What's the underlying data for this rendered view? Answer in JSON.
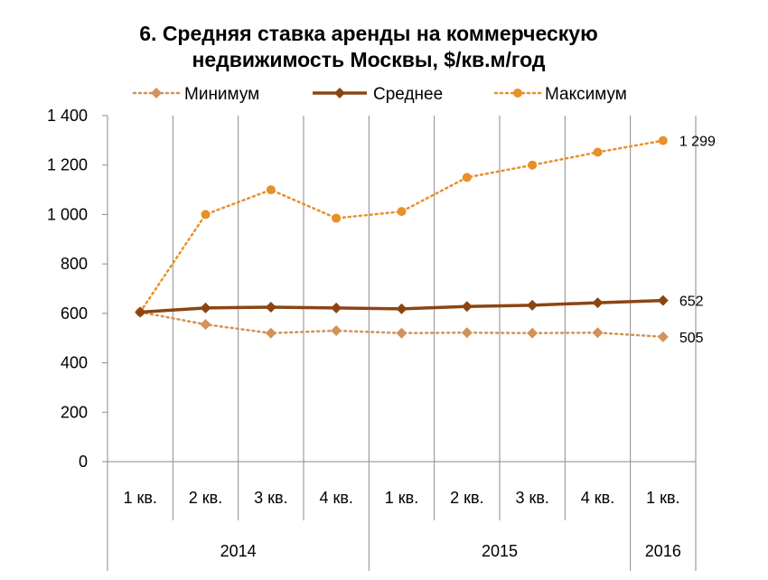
{
  "chart_data": {
    "type": "line",
    "title_line1": "6. Средняя ставка аренды на коммерческую",
    "title_line2": "недвижимость Москвы, $/кв.м/год",
    "categories": [
      "1 кв.",
      "2 кв.",
      "3 кв.",
      "4 кв.",
      "1 кв.",
      "2 кв.",
      "3 кв.",
      "4 кв.",
      "1 кв."
    ],
    "year_groups": [
      {
        "label": "2014",
        "span": 4
      },
      {
        "label": "2015",
        "span": 4
      },
      {
        "label": "2016",
        "span": 1
      }
    ],
    "ylim": [
      0,
      1400
    ],
    "ytick_values": [
      0,
      200,
      400,
      600,
      800,
      1000,
      1200,
      1400
    ],
    "ytick_labels": [
      "0",
      "200",
      "400",
      "600",
      "800",
      "1 000",
      "1 200",
      "1 400"
    ],
    "gridlines": "vertical",
    "legend_position": "top",
    "series": [
      {
        "name": "Минимум",
        "style": "dotted",
        "marker": "diamond",
        "color": "#D2925A",
        "values": [
          605,
          555,
          520,
          530,
          520,
          522,
          520,
          522,
          505
        ],
        "end_label": "505"
      },
      {
        "name": "Среднее",
        "style": "solid",
        "marker": "diamond",
        "color": "#8B4513",
        "values": [
          605,
          622,
          625,
          622,
          618,
          628,
          633,
          643,
          652
        ],
        "end_label": "652"
      },
      {
        "name": "Максимум",
        "style": "dotted",
        "marker": "circle",
        "color": "#E8902A",
        "values": [
          605,
          1000,
          1100,
          985,
          1012,
          1150,
          1200,
          1252,
          1299
        ],
        "end_label": "1 299"
      }
    ]
  }
}
